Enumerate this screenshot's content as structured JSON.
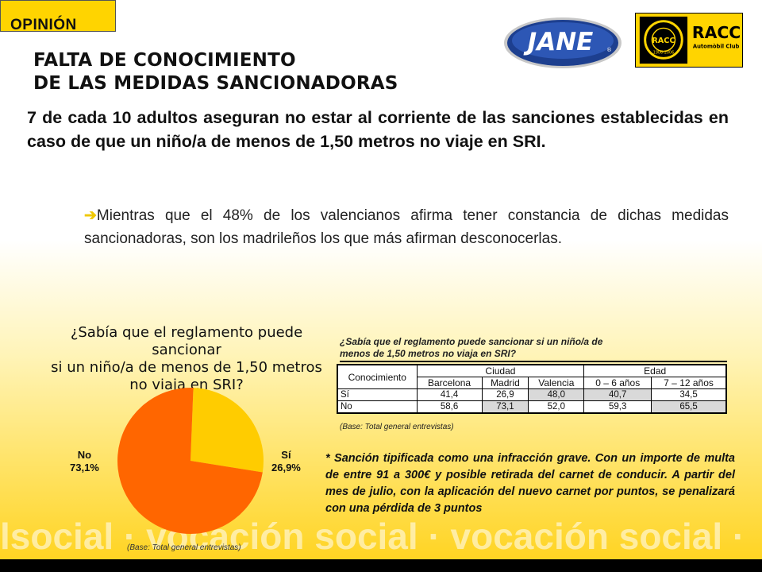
{
  "section": "OPINIÓN",
  "title": {
    "line1": "FALTA DE CONOCIMIENTO",
    "line2": "DE LAS MEDIDAS SANCIONADORAS"
  },
  "logos": {
    "jane": "JANE",
    "jane_mark": "®",
    "racc": "RACC",
    "racc_sub": "Automòbil Club",
    "racc_seal": "RACC",
    "racc_years": "1906-2006"
  },
  "headline": "7 de cada 10 adultos aseguran no estar al corriente de las sanciones establecidas en caso de que un niño/a de menos de 1,50 metros no viaje en SRI.",
  "bullet": {
    "icon": "arrow-icon",
    "text": "Mientras que el 48% de los valencianos afirma tener constancia de dichas medidas sancionadoras, son los madrileños los que más afirman desconocerlas."
  },
  "pie": {
    "question_line1": "¿Sabía que el reglamento puede sancionar",
    "question_line2": "si un niño/a de menos de 1,50 metros",
    "question_line3": "no viaja en SRI?",
    "base": "(Base: Total general entrevistas)"
  },
  "chart_data": [
    {
      "type": "pie",
      "title": "¿Sabía que el reglamento puede sancionar si un niño/a de menos de 1,50 metros no viaja en SRI?",
      "slices": [
        {
          "label": "No",
          "value_text": "73,1%",
          "value": 73.1,
          "color": "#ff6600"
        },
        {
          "label": "Sí",
          "value_text": "26,9%",
          "value": 26.9,
          "color": "#ffcc00"
        }
      ]
    },
    {
      "type": "table",
      "title": "¿Sabía que el reglamento puede sancionar si un niño/a de menos de 1,50 metros no viaja en SRI?",
      "row_header": "Conocimiento",
      "groups": [
        {
          "name": "Ciudad",
          "columns": [
            "Barcelona",
            "Madrid",
            "Valencia"
          ]
        },
        {
          "name": "Edad",
          "columns": [
            "0 – 6 años",
            "7 – 12 años"
          ]
        }
      ],
      "rows": [
        {
          "label": "Sí",
          "values": [
            "41,4",
            "26,9",
            "48,0",
            "40,7",
            "34,5"
          ]
        },
        {
          "label": "No",
          "values": [
            "58,6",
            "73,1",
            "52,0",
            "59,3",
            "65,5"
          ]
        }
      ],
      "base": "(Base: Total general entrevistas)"
    }
  ],
  "table": {
    "question_line1": "¿Sabía que el reglamento puede sancionar si un niño/a de",
    "question_line2": "menos de 1,50 metros no viaja en SRI?"
  },
  "footnote": "* Sanción tipificada como una infracción grave. Con un importe de multa de entre 91 a 300€ y posible retirada del carnet de conducir. A partir del mes de julio, con la aplicación del nuevo carnet por puntos, se penalizará con una pérdida de 3 puntos",
  "watermark": "lsocial · vocación social · vocación social ·",
  "colors": {
    "accent_yellow": "#ffd400",
    "pie_no": "#ff6600",
    "pie_si": "#ffcc00",
    "jane_blue": "#1d3f8f"
  }
}
